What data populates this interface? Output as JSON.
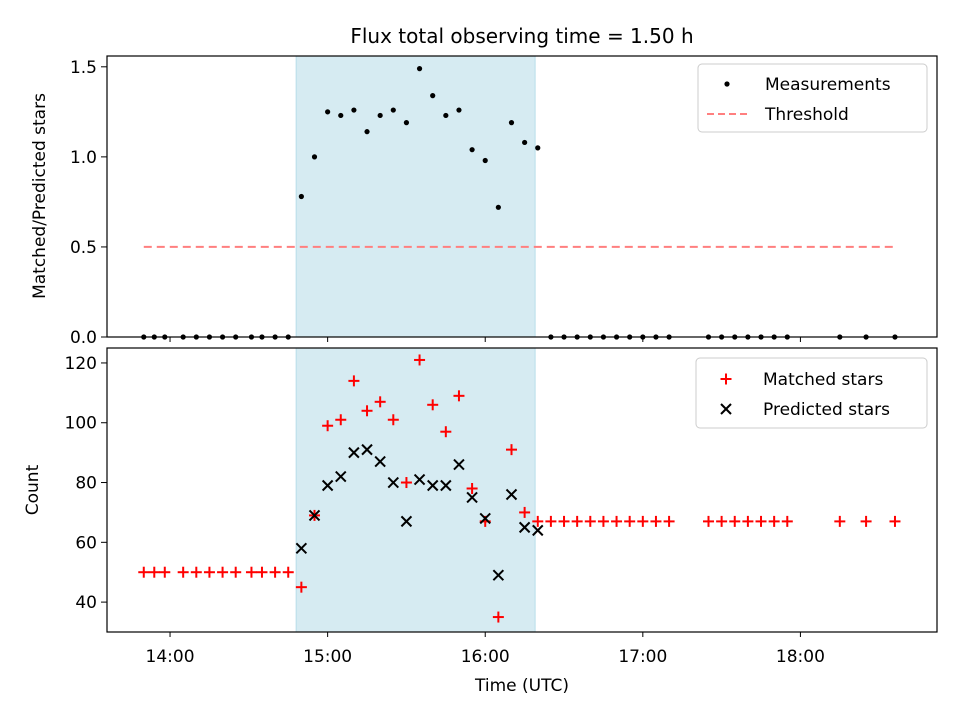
{
  "chart_data": {
    "title": "Flux total observing time = 1.50 h",
    "type": "scatter",
    "highlight_band": {
      "x_start": "14:48",
      "x_end": "16:19",
      "color": "#add8e6"
    },
    "shared_x": {
      "label": "Time (UTC)",
      "range": [
        "13:36",
        "18:52"
      ],
      "ticks": [
        "14:00",
        "15:00",
        "16:00",
        "17:00",
        "18:00"
      ]
    },
    "panels": [
      {
        "id": "ratio",
        "ylabel": "Matched/Predicted stars",
        "ylim": [
          0,
          1.56
        ],
        "yticks": [
          "0.0",
          "0.5",
          "1.0",
          "1.5"
        ],
        "legend_position": "upper right",
        "series": [
          {
            "name": "Measurements",
            "type": "scatter",
            "marker": "dot",
            "color": "#000000",
            "points": [
              [
                "13:50",
                0
              ],
              [
                "13:54",
                0
              ],
              [
                "13:58",
                0
              ],
              [
                "14:05",
                0
              ],
              [
                "14:10",
                0
              ],
              [
                "14:15",
                0
              ],
              [
                "14:20",
                0
              ],
              [
                "14:25",
                0
              ],
              [
                "14:31",
                0
              ],
              [
                "14:35",
                0
              ],
              [
                "14:40",
                0
              ],
              [
                "14:45",
                0
              ],
              [
                "14:50",
                0.78
              ],
              [
                "14:55",
                1.0
              ],
              [
                "15:00",
                1.25
              ],
              [
                "15:05",
                1.23
              ],
              [
                "15:10",
                1.26
              ],
              [
                "15:15",
                1.14
              ],
              [
                "15:20",
                1.23
              ],
              [
                "15:25",
                1.26
              ],
              [
                "15:30",
                1.19
              ],
              [
                "15:35",
                1.49
              ],
              [
                "15:40",
                1.34
              ],
              [
                "15:45",
                1.23
              ],
              [
                "15:50",
                1.26
              ],
              [
                "15:55",
                1.04
              ],
              [
                "16:00",
                0.98
              ],
              [
                "16:05",
                0.72
              ],
              [
                "16:10",
                1.19
              ],
              [
                "16:15",
                1.08
              ],
              [
                "16:20",
                1.05
              ],
              [
                "16:25",
                0
              ],
              [
                "16:30",
                0
              ],
              [
                "16:35",
                0
              ],
              [
                "16:40",
                0
              ],
              [
                "16:45",
                0
              ],
              [
                "16:50",
                0
              ],
              [
                "16:55",
                0
              ],
              [
                "17:00",
                0
              ],
              [
                "17:05",
                0
              ],
              [
                "17:10",
                0
              ],
              [
                "17:25",
                0
              ],
              [
                "17:30",
                0
              ],
              [
                "17:35",
                0
              ],
              [
                "17:40",
                0
              ],
              [
                "17:45",
                0
              ],
              [
                "17:50",
                0
              ],
              [
                "17:55",
                0
              ],
              [
                "18:15",
                0
              ],
              [
                "18:25",
                0
              ],
              [
                "18:36",
                0
              ]
            ]
          },
          {
            "name": "Threshold",
            "type": "line",
            "style": "dashed",
            "color": "#ff7f7f",
            "points": [
              [
                "13:50",
                0.5
              ],
              [
                "18:36",
                0.5
              ]
            ]
          }
        ]
      },
      {
        "id": "counts",
        "ylabel": "Count",
        "ylim": [
          30,
          125
        ],
        "yticks": [
          "40",
          "60",
          "80",
          "100",
          "120"
        ],
        "legend_position": "upper right",
        "series": [
          {
            "name": "Matched stars",
            "type": "scatter",
            "marker": "plus",
            "color": "#ff0000",
            "points": [
              [
                "13:50",
                50
              ],
              [
                "13:54",
                50
              ],
              [
                "13:58",
                50
              ],
              [
                "14:05",
                50
              ],
              [
                "14:10",
                50
              ],
              [
                "14:15",
                50
              ],
              [
                "14:20",
                50
              ],
              [
                "14:25",
                50
              ],
              [
                "14:31",
                50
              ],
              [
                "14:35",
                50
              ],
              [
                "14:40",
                50
              ],
              [
                "14:45",
                50
              ],
              [
                "14:50",
                45
              ],
              [
                "14:55",
                69
              ],
              [
                "15:00",
                99
              ],
              [
                "15:05",
                101
              ],
              [
                "15:10",
                114
              ],
              [
                "15:15",
                104
              ],
              [
                "15:20",
                107
              ],
              [
                "15:25",
                101
              ],
              [
                "15:30",
                80
              ],
              [
                "15:35",
                121
              ],
              [
                "15:40",
                106
              ],
              [
                "15:45",
                97
              ],
              [
                "15:50",
                109
              ],
              [
                "15:55",
                78
              ],
              [
                "16:00",
                67
              ],
              [
                "16:05",
                35
              ],
              [
                "16:10",
                91
              ],
              [
                "16:15",
                70
              ],
              [
                "16:20",
                67
              ],
              [
                "16:25",
                67
              ],
              [
                "16:30",
                67
              ],
              [
                "16:35",
                67
              ],
              [
                "16:40",
                67
              ],
              [
                "16:45",
                67
              ],
              [
                "16:50",
                67
              ],
              [
                "16:55",
                67
              ],
              [
                "17:00",
                67
              ],
              [
                "17:05",
                67
              ],
              [
                "17:10",
                67
              ],
              [
                "17:25",
                67
              ],
              [
                "17:30",
                67
              ],
              [
                "17:35",
                67
              ],
              [
                "17:40",
                67
              ],
              [
                "17:45",
                67
              ],
              [
                "17:50",
                67
              ],
              [
                "17:55",
                67
              ],
              [
                "18:15",
                67
              ],
              [
                "18:25",
                67
              ],
              [
                "18:36",
                67
              ]
            ]
          },
          {
            "name": "Predicted stars",
            "type": "scatter",
            "marker": "x",
            "color": "#000000",
            "points": [
              [
                "14:50",
                58
              ],
              [
                "14:55",
                69
              ],
              [
                "15:00",
                79
              ],
              [
                "15:05",
                82
              ],
              [
                "15:10",
                90
              ],
              [
                "15:15",
                91
              ],
              [
                "15:20",
                87
              ],
              [
                "15:25",
                80
              ],
              [
                "15:30",
                67
              ],
              [
                "15:35",
                81
              ],
              [
                "15:40",
                79
              ],
              [
                "15:45",
                79
              ],
              [
                "15:50",
                86
              ],
              [
                "15:55",
                75
              ],
              [
                "16:00",
                68
              ],
              [
                "16:05",
                49
              ],
              [
                "16:10",
                76
              ],
              [
                "16:15",
                65
              ],
              [
                "16:20",
                64
              ]
            ]
          }
        ]
      }
    ]
  }
}
